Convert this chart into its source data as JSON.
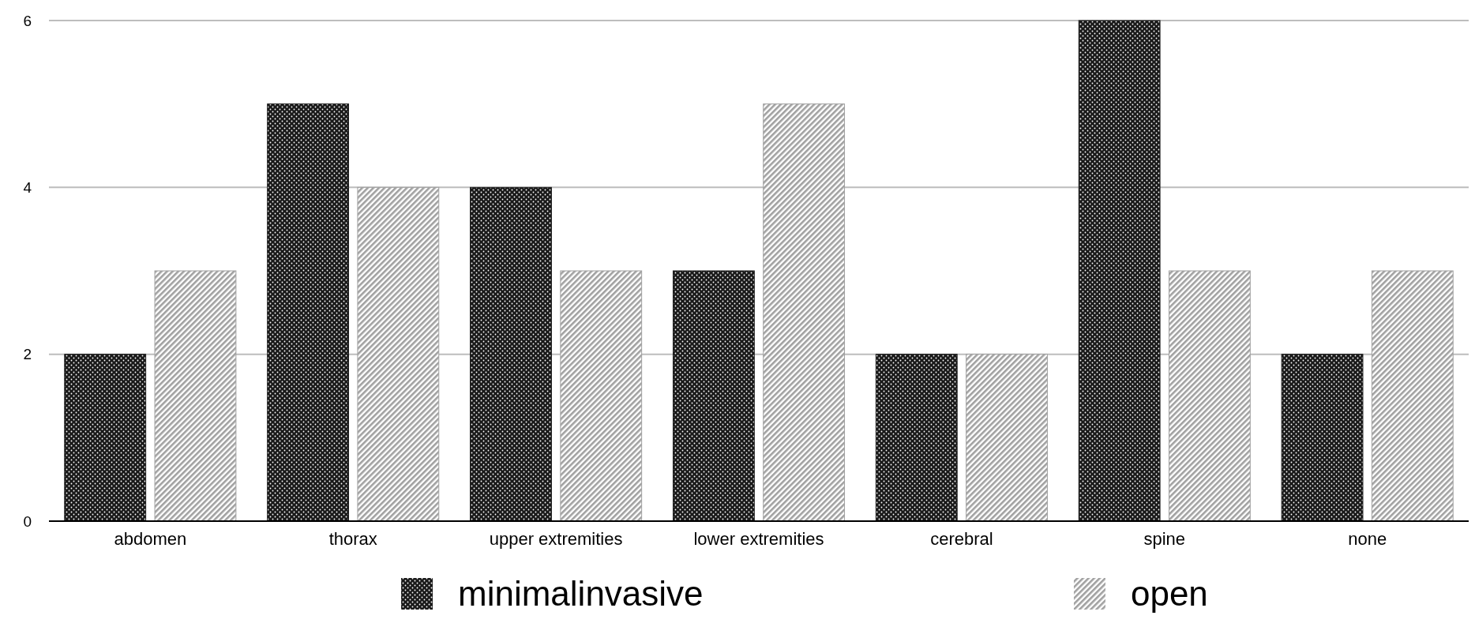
{
  "chart_data": {
    "type": "bar",
    "categories": [
      "abdomen",
      "thorax",
      "upper extremities",
      "lower extremities",
      "cerebral",
      "spine",
      "none"
    ],
    "series": [
      {
        "name": "minimalinvasive",
        "color": "#1a1a1a",
        "values": [
          2,
          5,
          4,
          3,
          2,
          6,
          2
        ]
      },
      {
        "name": "open",
        "color": "#a0a0a0",
        "values": [
          3,
          4,
          3,
          5,
          2,
          3,
          3
        ]
      }
    ],
    "ylim": [
      0,
      6
    ],
    "yticks": [
      0,
      2,
      4,
      6
    ],
    "grid": "y",
    "legend": "bottom"
  }
}
